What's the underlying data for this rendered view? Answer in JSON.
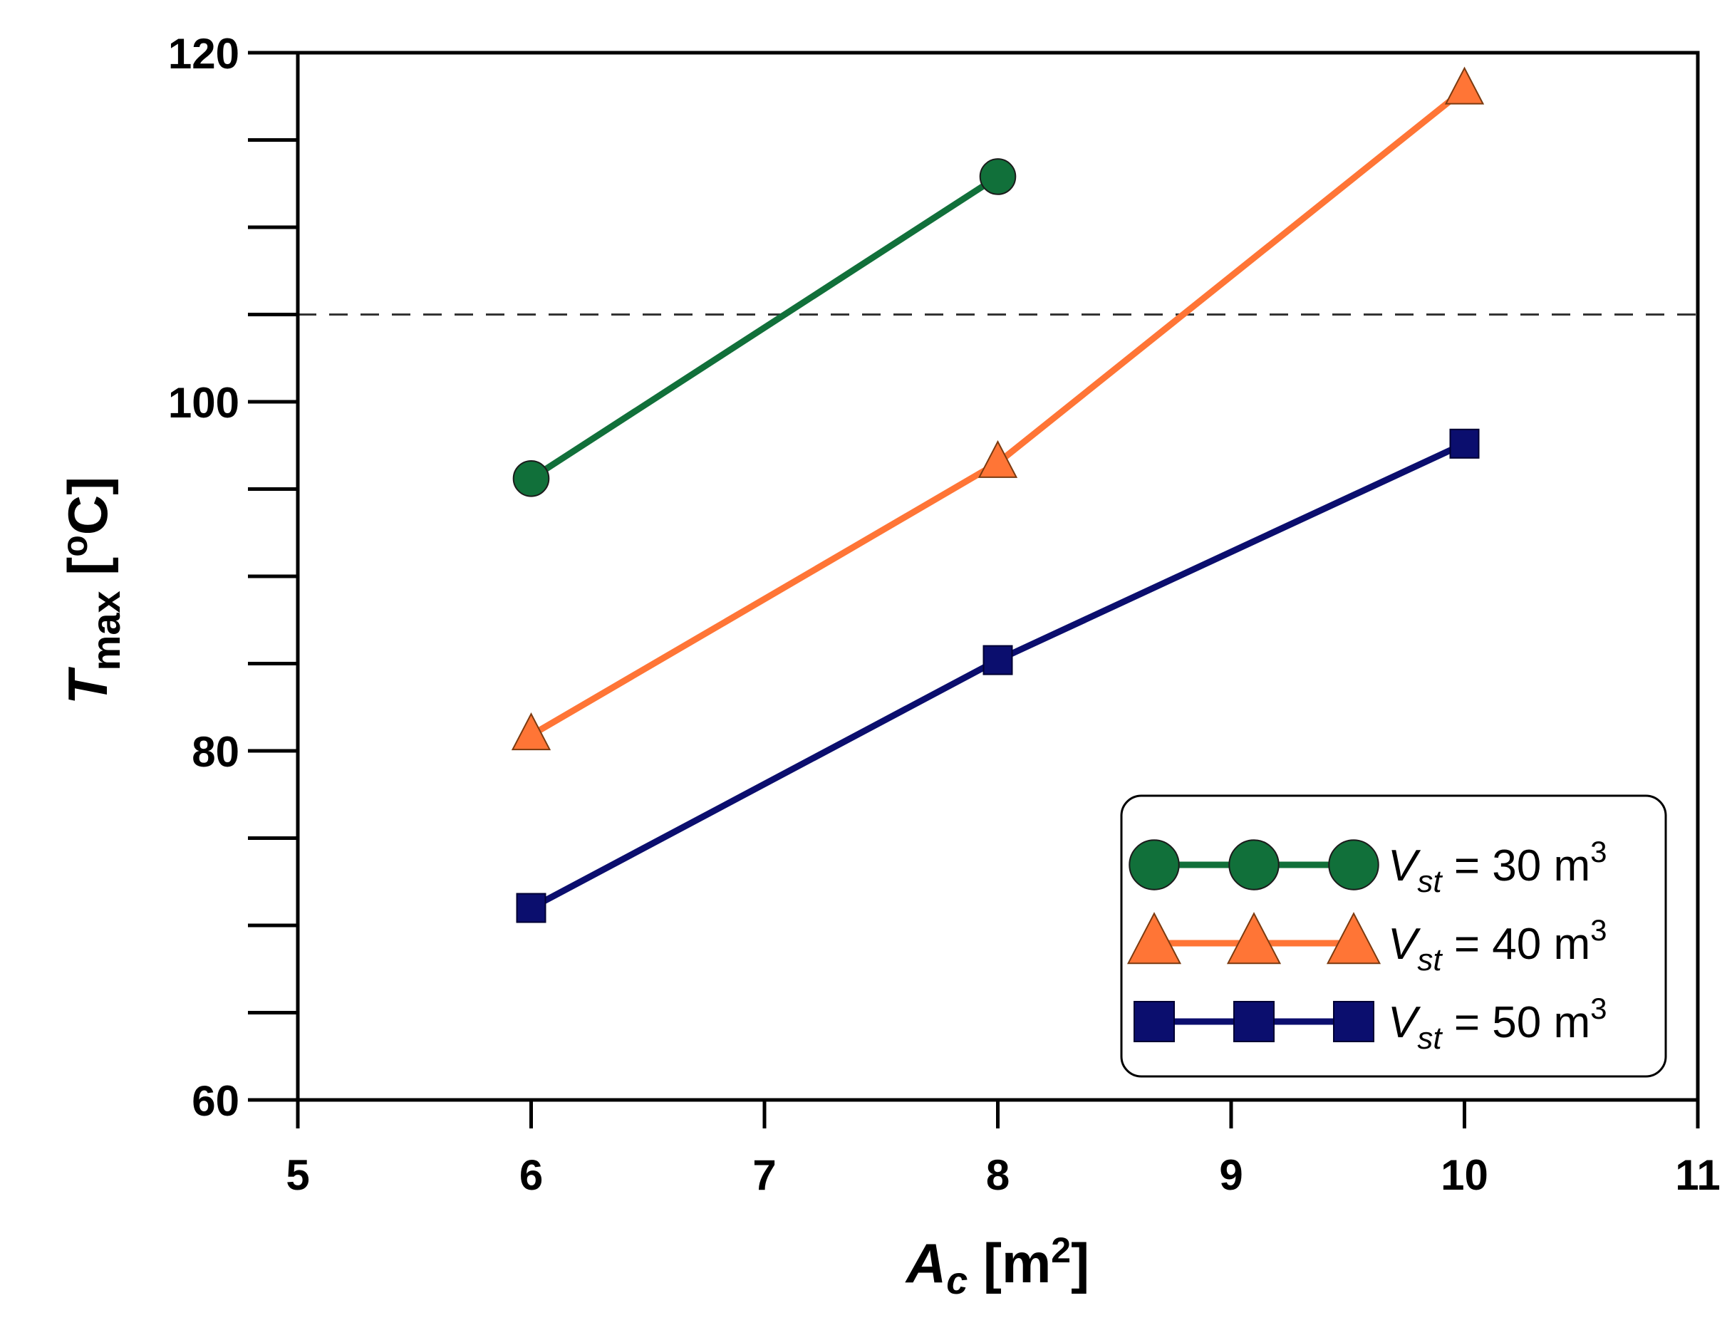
{
  "chart_data": {
    "type": "line",
    "xlabel": {
      "main": "A",
      "sub": "c",
      "unit_open": " [m",
      "unit_sup": "2",
      "unit_close": "]"
    },
    "ylabel": {
      "main": "T",
      "sub": "max",
      "unit_open": " [",
      "unit_sup": "o",
      "unit_close": "C]"
    },
    "xlim": [
      5,
      11
    ],
    "ylim": [
      60,
      120
    ],
    "x_ticks": [
      5,
      6,
      7,
      8,
      9,
      10,
      11
    ],
    "y_major_ticks": [
      60,
      80,
      100,
      120
    ],
    "y_minor_step": 5,
    "reference_line": {
      "y": 105,
      "style": "dashed",
      "color": "#333333"
    },
    "legend_position": "bottom-right",
    "series": [
      {
        "name": "V_st = 30 m3",
        "legend": {
          "main": "V",
          "sub": "st",
          "eq": " = 30 m",
          "sup": "3"
        },
        "marker": "circle",
        "color": "#11703a",
        "x": [
          6,
          8
        ],
        "y": [
          95.6,
          112.9
        ]
      },
      {
        "name": "V_st = 40 m3",
        "legend": {
          "main": "V",
          "sub": "st",
          "eq": " = 40 m",
          "sup": "3"
        },
        "marker": "triangle",
        "color": "#ff7536",
        "x": [
          6,
          8,
          10
        ],
        "y": [
          80.9,
          96.5,
          117.9
        ]
      },
      {
        "name": "V_st = 50 m3",
        "legend": {
          "main": "V",
          "sub": "st",
          "eq": " = 50 m",
          "sup": "3"
        },
        "marker": "square",
        "color": "#0b0e6e",
        "x": [
          6,
          8,
          10
        ],
        "y": [
          71.0,
          85.2,
          97.6
        ]
      }
    ]
  }
}
